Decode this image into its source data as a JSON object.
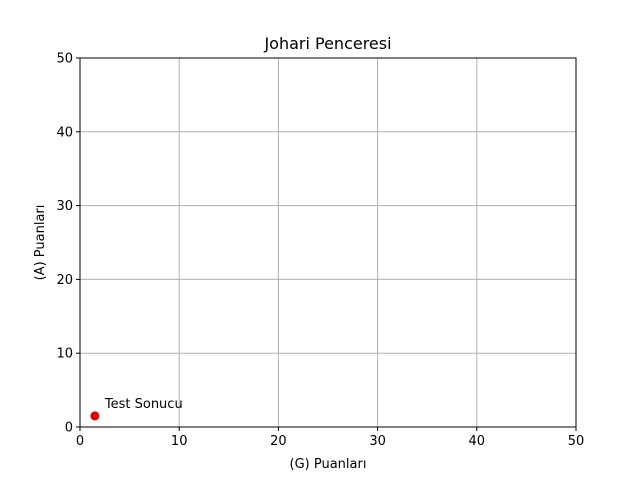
{
  "chart_data": {
    "type": "scatter",
    "title": "Johari Penceresi",
    "xlabel": "(G) Puanları",
    "ylabel": "(A) Puanları",
    "xlim": [
      0,
      50
    ],
    "ylim": [
      0,
      50
    ],
    "xticks": [
      0,
      10,
      20,
      30,
      40,
      50
    ],
    "yticks": [
      0,
      10,
      20,
      30,
      40,
      50
    ],
    "grid": true,
    "series": [
      {
        "points": [
          {
            "x": 1.5,
            "y": 1.5,
            "label": "Test Sonucu"
          }
        ],
        "color": "#e00000"
      }
    ],
    "grid_color": "#b0b0b0",
    "axis_color": "#000000"
  }
}
